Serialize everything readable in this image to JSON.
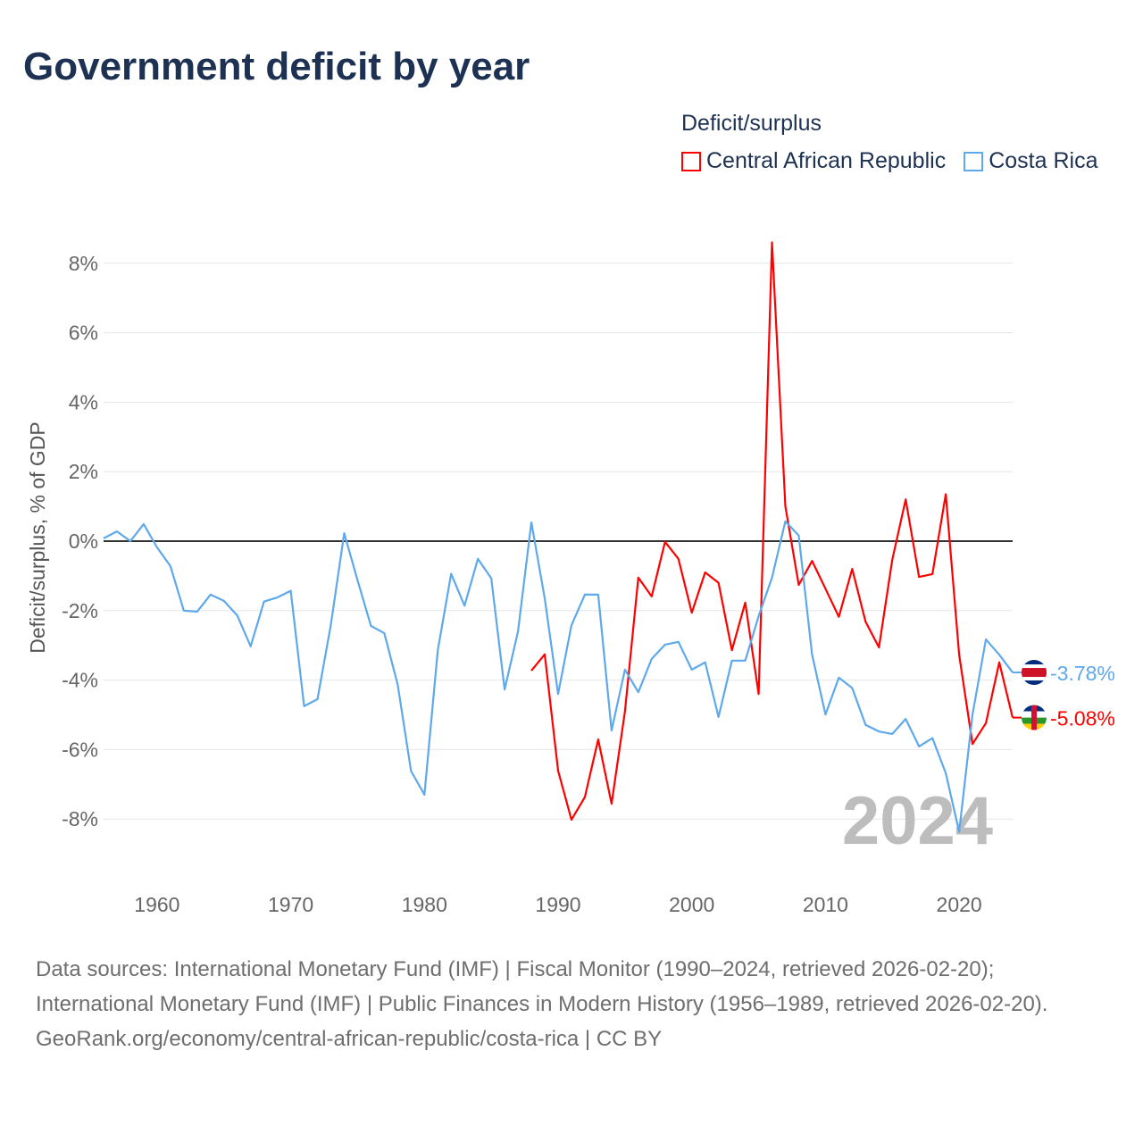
{
  "title": "Government deficit by year",
  "legend_title": "Deficit/surplus",
  "chart_data": {
    "type": "line",
    "title": "Government deficit by year",
    "xlabel": "",
    "ylabel": "Deficit/surplus, % of GDP",
    "xlim": [
      1956,
      2024
    ],
    "ylim": [
      -9.5,
      8.8
    ],
    "x_ticks": [
      "1960",
      "1970",
      "1980",
      "1990",
      "2000",
      "2010",
      "2020"
    ],
    "y_ticks": [
      "8%",
      "6%",
      "4%",
      "2%",
      "0%",
      "-2%",
      "-4%",
      "-6%",
      "-8%"
    ],
    "y_tick_values": [
      8,
      6,
      4,
      2,
      0,
      -2,
      -4,
      -6,
      -8
    ],
    "year_watermark": "2024",
    "grid": true,
    "legend_placement": "top-right",
    "series": [
      {
        "name": "Central African Republic",
        "color": "#ff0000",
        "end_label": "-5.08%",
        "flag": "central-african-republic-flag",
        "x": [
          1988,
          1989,
          1990,
          1991,
          1992,
          1993,
          1994,
          1995,
          1996,
          1997,
          1998,
          1999,
          2000,
          2001,
          2002,
          2003,
          2004,
          2005,
          2006,
          2007,
          2008,
          2009,
          2010,
          2011,
          2012,
          2013,
          2014,
          2015,
          2016,
          2017,
          2018,
          2019,
          2020,
          2021,
          2022,
          2023,
          2024
        ],
        "values": [
          -3.73,
          -3.26,
          -6.61,
          -8.02,
          -7.37,
          -5.71,
          -7.56,
          -4.9,
          -1.05,
          -1.59,
          -0.02,
          -0.51,
          -2.06,
          -0.9,
          -1.2,
          -3.14,
          -1.77,
          -4.4,
          8.6,
          1.0,
          -1.26,
          -0.57,
          -1.37,
          -2.18,
          -0.8,
          -2.32,
          -3.06,
          -0.53,
          1.2,
          -1.03,
          -0.95,
          1.35,
          -3.27,
          -5.84,
          -5.24,
          -3.49,
          -5.08
        ]
      },
      {
        "name": "Costa Rica",
        "color": "#5ea8ec",
        "end_label": "-3.78%",
        "flag": "costa-rica-flag",
        "x": [
          1956,
          1957,
          1958,
          1959,
          1960,
          1961,
          1962,
          1963,
          1964,
          1965,
          1966,
          1967,
          1968,
          1969,
          1970,
          1971,
          1972,
          1973,
          1974,
          1975,
          1976,
          1977,
          1978,
          1979,
          1980,
          1981,
          1982,
          1983,
          1984,
          1985,
          1986,
          1987,
          1988,
          1989,
          1990,
          1991,
          1992,
          1993,
          1994,
          1995,
          1996,
          1997,
          1998,
          1999,
          2000,
          2001,
          2002,
          2003,
          2004,
          2005,
          2006,
          2007,
          2008,
          2009,
          2010,
          2011,
          2012,
          2013,
          2014,
          2015,
          2016,
          2017,
          2018,
          2019,
          2020,
          2021,
          2022,
          2023,
          2024
        ],
        "values": [
          0.08,
          0.28,
          0.0,
          0.49,
          -0.18,
          -0.72,
          -2.0,
          -2.03,
          -1.54,
          -1.72,
          -2.14,
          -3.03,
          -1.74,
          -1.62,
          -1.43,
          -4.75,
          -4.55,
          -2.41,
          0.23,
          -1.13,
          -2.44,
          -2.65,
          -4.13,
          -6.62,
          -7.3,
          -3.14,
          -0.94,
          -1.86,
          -0.51,
          -1.07,
          -4.27,
          -2.6,
          0.54,
          -1.65,
          -4.4,
          -2.42,
          -1.54,
          -1.54,
          -5.45,
          -3.7,
          -4.35,
          -3.39,
          -2.98,
          -2.9,
          -3.7,
          -3.49,
          -5.06,
          -3.44,
          -3.44,
          -2.16,
          -1.05,
          0.57,
          0.16,
          -3.27,
          -4.99,
          -3.93,
          -4.23,
          -5.29,
          -5.48,
          -5.55,
          -5.12,
          -5.91,
          -5.67,
          -6.68,
          -8.37,
          -4.99,
          -2.83,
          -3.27,
          -3.78
        ]
      }
    ]
  },
  "sources": {
    "line1": "Data sources: International Monetary Fund (IMF) | Fiscal Monitor (1990–2024, retrieved 2026-02-20); International Monetary Fund (IMF) | Public Finances in Modern History (1956–1989, retrieved 2026-02-20).",
    "line2": "GeoRank.org/economy/central-african-republic/costa-rica | CC BY"
  }
}
